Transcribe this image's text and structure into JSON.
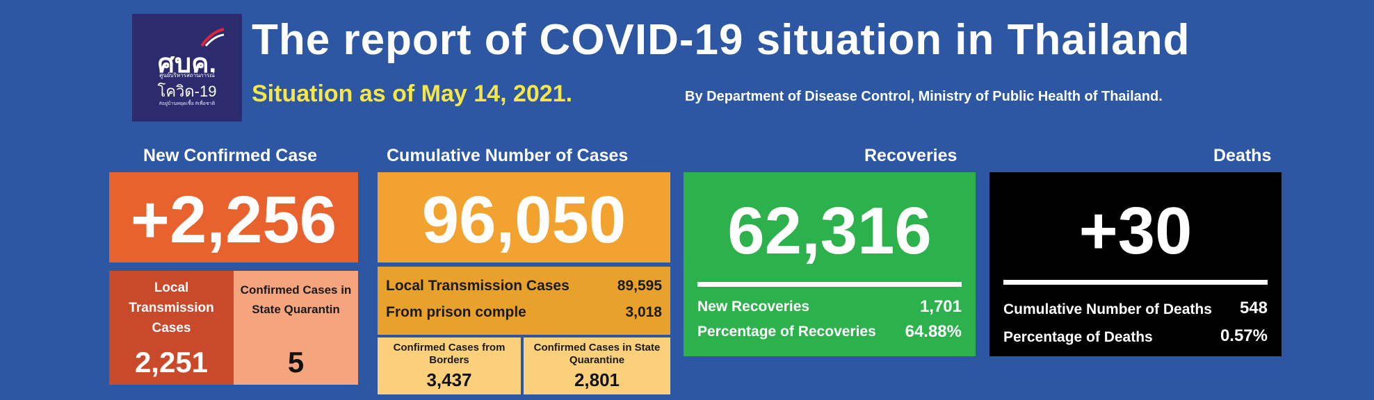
{
  "header": {
    "title": "The report of COVID-19 situation in Thailand",
    "as_of": "Situation as of May 14, 2021.",
    "source": "By Department of Disease Control, Ministry of Public Health of Thailand."
  },
  "logo": {
    "main": "ศบค.",
    "sub": "ศูนย์บริหารสถานการณ์",
    "name": "โควิด-19",
    "tag": "#อยู่บ้านหยุดเชื้อ #เพื่อชาติ"
  },
  "new_confirmed": {
    "header": "New Confirmed Case",
    "value": "+2,256",
    "local_label": "Local Transmission Cases",
    "local_value": "2,251",
    "quarantine_label": "Confirmed Cases in State Quarantin",
    "quarantine_value": "5"
  },
  "cumulative": {
    "header": "Cumulative Number of Cases",
    "value": "96,050",
    "local_label": "Local Transmission Cases",
    "local_value": "89,595",
    "prison_label": "From prison comple",
    "prison_value": "3,018",
    "borders_label": "Confirmed Cases from Borders",
    "borders_value": "3,437",
    "quarantine_label": "Confirmed Cases in State Quarantine",
    "quarantine_value": "2,801"
  },
  "recoveries": {
    "header": "Recoveries",
    "value": "62,316",
    "new_label": "New Recoveries",
    "new_value": "1,701",
    "pct_label": "Percentage of Recoveries",
    "pct_value": "64.88%"
  },
  "deaths": {
    "header": "Deaths",
    "value": "+30",
    "cum_label": "Cumulative Number of Deaths",
    "cum_value": "548",
    "pct_label": "Percentage of Deaths",
    "pct_value": "0.57%"
  },
  "colors": {
    "background": "#2d57a2",
    "new_confirmed": "#e8622e",
    "cumulative": "#f2a22e",
    "recoveries": "#2cb14c",
    "deaths": "#000000",
    "as_of": "#f5e64a"
  }
}
